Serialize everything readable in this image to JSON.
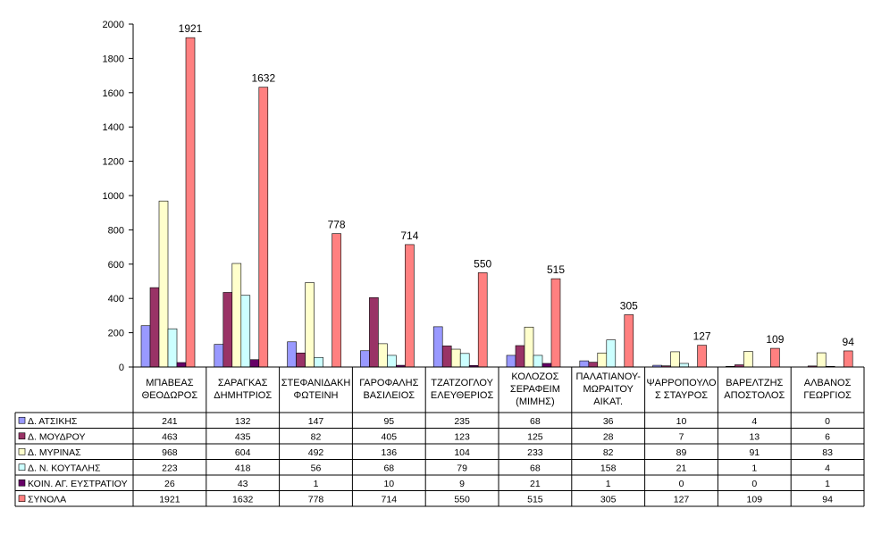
{
  "chart_data": {
    "type": "bar",
    "title": "",
    "xlabel": "",
    "ylabel": "",
    "ylim": [
      0,
      2000
    ],
    "yticks": [
      0,
      200,
      400,
      600,
      800,
      1000,
      1200,
      1400,
      1600,
      1800,
      2000
    ],
    "grid": false,
    "legend": "data-table-left",
    "categories": [
      [
        "ΜΠΑΒΕΑΣ",
        "ΘΕΟΔΩΡΟΣ"
      ],
      [
        "ΣΑΡΑΓΚΑΣ",
        "ΔΗΜΗΤΡΙΟΣ"
      ],
      [
        "ΣΤΕΦΑΝΙΔΑΚΗ",
        "ΦΩΤΕΙΝΗ"
      ],
      [
        "ΓΑΡΟΦΑΛΗΣ",
        "ΒΑΣΙΛΕΙΟΣ"
      ],
      [
        "ΤΖΑΤΖΟΓΛΟΥ",
        "ΕΛΕΥΘΕΡΙΟΣ"
      ],
      [
        "ΚΟΛΟΖΟΣ",
        "ΣΕΡΑΦΕΙΜ",
        "(ΜΙΜΗΣ)"
      ],
      [
        "ΠΑΛΑΤΙΑΝΟΥ-",
        "ΜΩΡΑΙΤΟΥ",
        "ΑΙΚΑΤ."
      ],
      [
        "ΨΑΡΡΟΠΟΥΛΟ",
        "Σ ΣΤΑΥΡΟΣ"
      ],
      [
        "ΒΑΡΕΛΤΖΗΣ",
        "ΑΠΟΣΤΟΛΟΣ"
      ],
      [
        "ΑΛΒΑΝΟΣ",
        "ΓΕΩΡΓΙΟΣ"
      ]
    ],
    "series": [
      {
        "name": "Δ. ΑΤΣΙΚΗΣ",
        "color": "#9999ff",
        "values": [
          241,
          132,
          147,
          95,
          235,
          68,
          36,
          10,
          4,
          0
        ]
      },
      {
        "name": "Δ. ΜΟΥΔΡΟΥ",
        "color": "#993366",
        "values": [
          463,
          435,
          82,
          405,
          123,
          125,
          28,
          7,
          13,
          6
        ]
      },
      {
        "name": "Δ. ΜΥΡΙΝΑΣ",
        "color": "#ffffcc",
        "values": [
          968,
          604,
          492,
          136,
          104,
          233,
          82,
          89,
          91,
          83
        ]
      },
      {
        "name": "Δ. Ν. ΚΟΥΤΑΛΗΣ",
        "color": "#ccffff",
        "values": [
          223,
          418,
          56,
          68,
          79,
          68,
          158,
          21,
          1,
          4
        ]
      },
      {
        "name": "ΚΟΙΝ. ΑΓ. ΕΥΣΤΡΑΤΙΟΥ",
        "color": "#660066",
        "values": [
          26,
          43,
          1,
          10,
          9,
          21,
          1,
          0,
          0,
          1
        ]
      },
      {
        "name": "ΣΥΝΟΛΑ",
        "color": "#ff8080",
        "values": [
          1921,
          1632,
          778,
          714,
          550,
          515,
          305,
          127,
          109,
          94
        ],
        "data_labels": true
      }
    ]
  }
}
